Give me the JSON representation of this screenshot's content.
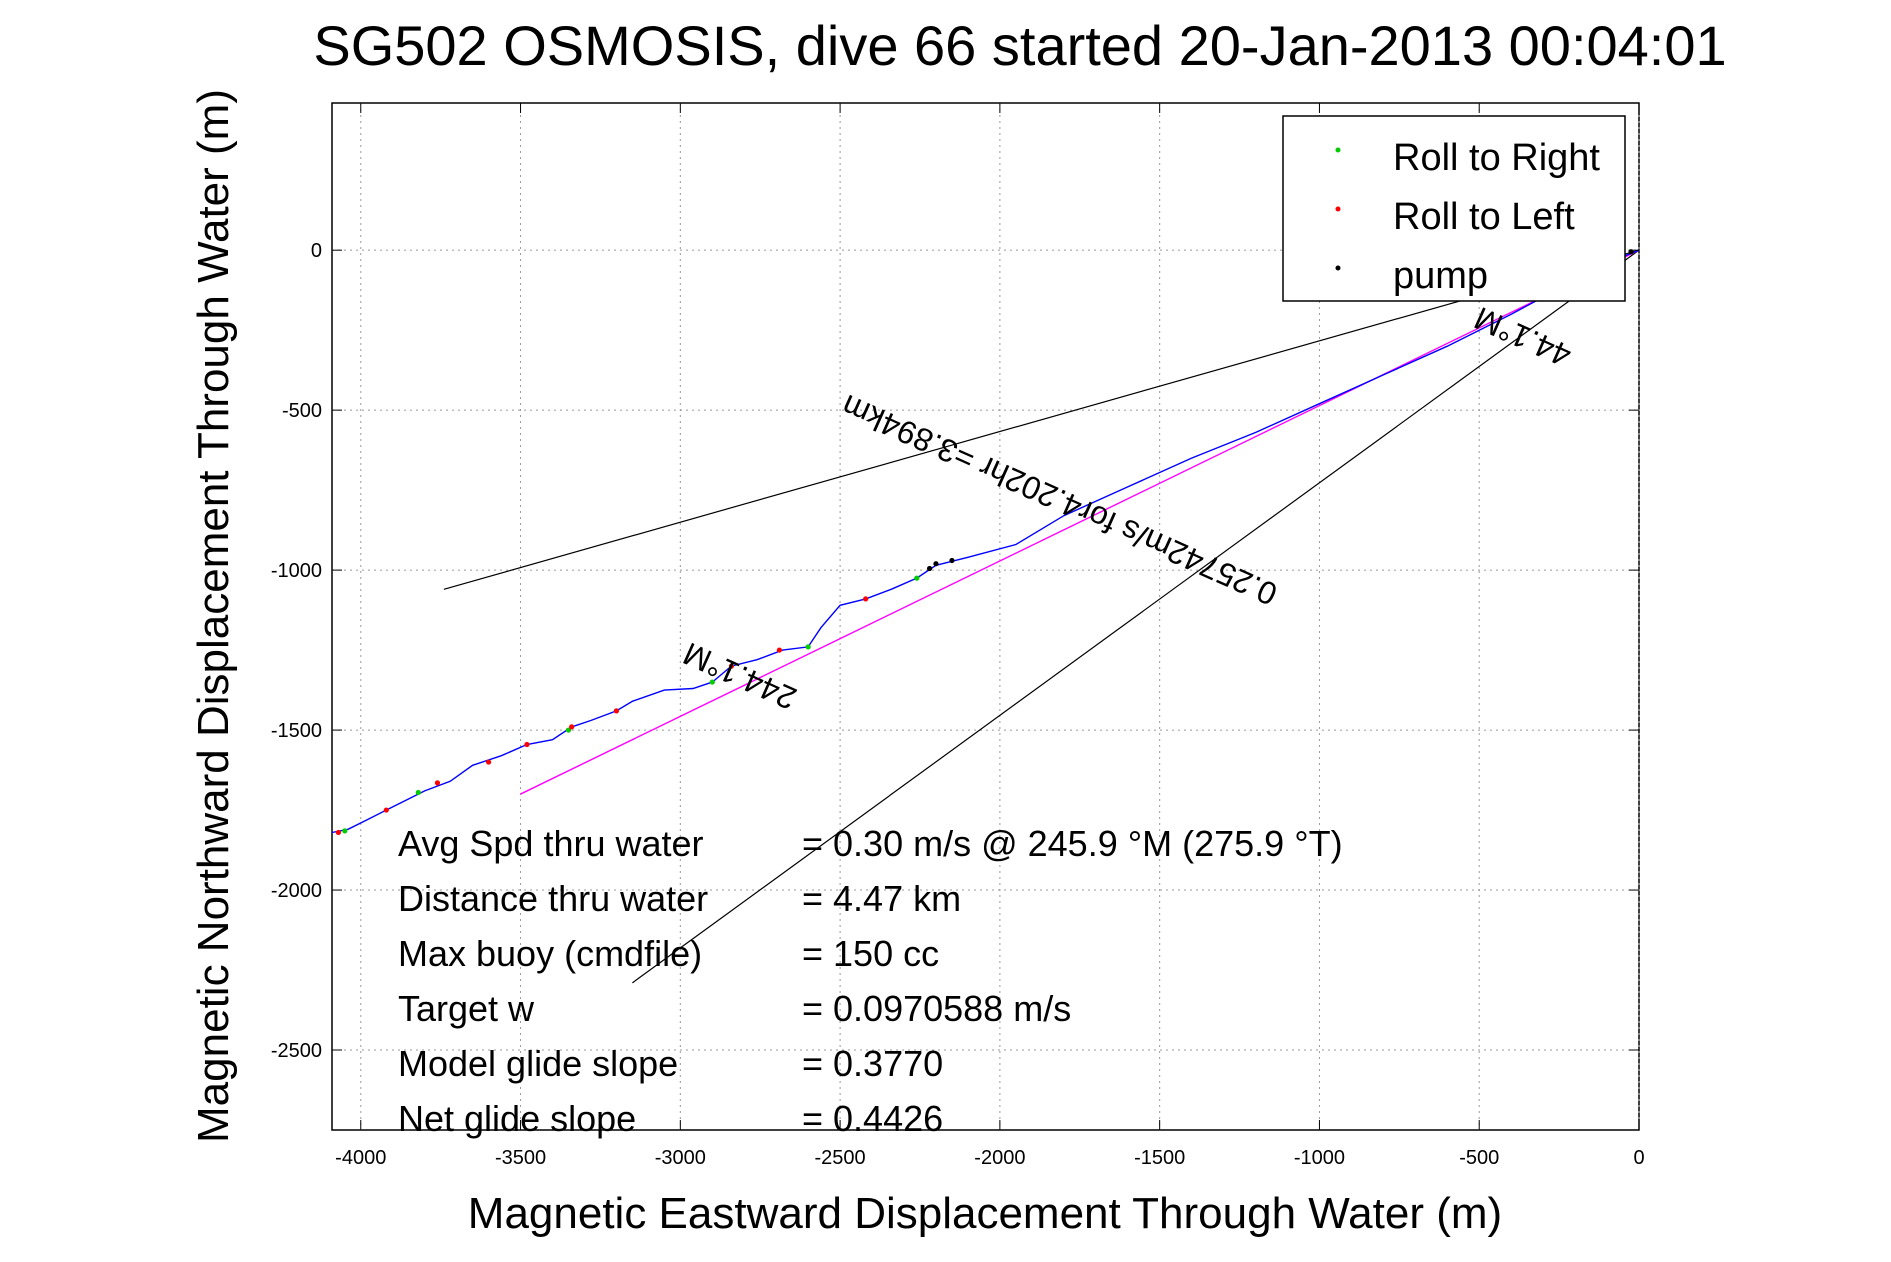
{
  "chart_data": {
    "type": "line",
    "title": "SG502 OSMOSIS, dive 66 started 20-Jan-2013 00:04:01",
    "xlabel": "Magnetic Eastward Displacement Through Water (m)",
    "ylabel": "Magnetic Northward Displacement Through Water (m)",
    "xlim": [
      -4090,
      0
    ],
    "ylim": [
      -2750,
      460
    ],
    "xticks": [
      -4000,
      -3500,
      -3000,
      -2500,
      -2000,
      -1500,
      -1000,
      -500,
      0
    ],
    "yticks": [
      -2500,
      -2000,
      -1500,
      -1000,
      -500,
      0
    ],
    "xtick_labels": [
      "-4000",
      "-3500",
      "-3000",
      "-2500",
      "-2000",
      "-1500",
      "-1000",
      "-500",
      "0"
    ],
    "ytick_labels": [
      "-2500",
      "-2000",
      "-1500",
      "-1000",
      "-500",
      "0"
    ],
    "grid": true,
    "legend_position": "top-right",
    "colors": {
      "track": "#0000ff",
      "roll_right": "#00cc00",
      "roll_left": "#ff0000",
      "pump": "#000000",
      "current_vector": "#ff00ff",
      "reference_lines": "#000000"
    },
    "legend": [
      {
        "label": "Roll to Right",
        "color": "#00cc00"
      },
      {
        "label": "Roll to Left",
        "color": "#ff0000"
      },
      {
        "label": "pump",
        "color": "#000000"
      }
    ],
    "track": [
      {
        "x": 0,
        "y": 0
      },
      {
        "x": -100,
        "y": -40
      },
      {
        "x": -250,
        "y": -120
      },
      {
        "x": -400,
        "y": -200
      },
      {
        "x": -600,
        "y": -300
      },
      {
        "x": -800,
        "y": -390
      },
      {
        "x": -1000,
        "y": -480
      },
      {
        "x": -1200,
        "y": -570
      },
      {
        "x": -1400,
        "y": -650
      },
      {
        "x": -1600,
        "y": -740
      },
      {
        "x": -1800,
        "y": -830
      },
      {
        "x": -1950,
        "y": -920
      },
      {
        "x": -2100,
        "y": -960
      },
      {
        "x": -2200,
        "y": -985
      },
      {
        "x": -2260,
        "y": -1025
      },
      {
        "x": -2340,
        "y": -1060
      },
      {
        "x": -2420,
        "y": -1090
      },
      {
        "x": -2500,
        "y": -1110
      },
      {
        "x": -2560,
        "y": -1180
      },
      {
        "x": -2600,
        "y": -1240
      },
      {
        "x": -2680,
        "y": -1250
      },
      {
        "x": -2760,
        "y": -1280
      },
      {
        "x": -2840,
        "y": -1300
      },
      {
        "x": -2900,
        "y": -1350
      },
      {
        "x": -2960,
        "y": -1370
      },
      {
        "x": -3050,
        "y": -1375
      },
      {
        "x": -3150,
        "y": -1410
      },
      {
        "x": -3200,
        "y": -1440
      },
      {
        "x": -3280,
        "y": -1470
      },
      {
        "x": -3340,
        "y": -1490
      },
      {
        "x": -3400,
        "y": -1530
      },
      {
        "x": -3480,
        "y": -1545
      },
      {
        "x": -3560,
        "y": -1580
      },
      {
        "x": -3650,
        "y": -1610
      },
      {
        "x": -3720,
        "y": -1660
      },
      {
        "x": -3800,
        "y": -1690
      },
      {
        "x": -3900,
        "y": -1740
      },
      {
        "x": -3980,
        "y": -1780
      },
      {
        "x": -4040,
        "y": -1810
      },
      {
        "x": -4090,
        "y": -1820
      }
    ],
    "roll_right_points": [
      {
        "x": -2260,
        "y": -1025
      },
      {
        "x": -2600,
        "y": -1240
      },
      {
        "x": -2900,
        "y": -1350
      },
      {
        "x": -3350,
        "y": -1500
      },
      {
        "x": -3820,
        "y": -1695
      },
      {
        "x": -4050,
        "y": -1815
      }
    ],
    "roll_left_points": [
      {
        "x": -2420,
        "y": -1090
      },
      {
        "x": -2690,
        "y": -1250
      },
      {
        "x": -2840,
        "y": -1300
      },
      {
        "x": -3200,
        "y": -1440
      },
      {
        "x": -3340,
        "y": -1490
      },
      {
        "x": -3480,
        "y": -1545
      },
      {
        "x": -3600,
        "y": -1600
      },
      {
        "x": -3760,
        "y": -1665
      },
      {
        "x": -3920,
        "y": -1750
      },
      {
        "x": -4070,
        "y": -1820
      }
    ],
    "pump_points": [
      {
        "x": -2150,
        "y": -970
      },
      {
        "x": -2200,
        "y": -980
      },
      {
        "x": -2220,
        "y": -995
      },
      {
        "x": -25,
        "y": -5
      }
    ],
    "current_vector": [
      {
        "x": 0,
        "y": 0
      },
      {
        "x": -3500,
        "y": -1700
      }
    ],
    "reference_lines": [
      [
        {
          "x": 0,
          "y": 0
        },
        {
          "x": -3740,
          "y": -1060
        }
      ],
      [
        {
          "x": 0,
          "y": 0
        },
        {
          "x": -3150,
          "y": -2290
        }
      ]
    ],
    "annotations": [
      {
        "text": "0.25742m/s for4.202hr =3.894km",
        "x": -1800,
        "y": -750,
        "rotate": 204
      },
      {
        "text": "244.1°M",
        "x": -2800,
        "y": -1300,
        "rotate": 204
      },
      {
        "text": "44.1°M",
        "x": -350,
        "y": -240,
        "rotate": 204
      }
    ],
    "stats": [
      {
        "label": "Avg Spd thru water",
        "value": "=  0.30 m/s @ 245.9 °M (275.9 °T)"
      },
      {
        "label": "Distance thru water",
        "value": "=  4.47 km"
      },
      {
        "label": "Max buoy (cmdfile)",
        "value": "= 150 cc"
      },
      {
        "label": "Target w",
        "value": "= 0.0970588 m/s"
      },
      {
        "label": "Model glide slope",
        "value": "= 0.3770"
      },
      {
        "label": "Net glide slope",
        "value": "= 0.4426"
      }
    ]
  }
}
